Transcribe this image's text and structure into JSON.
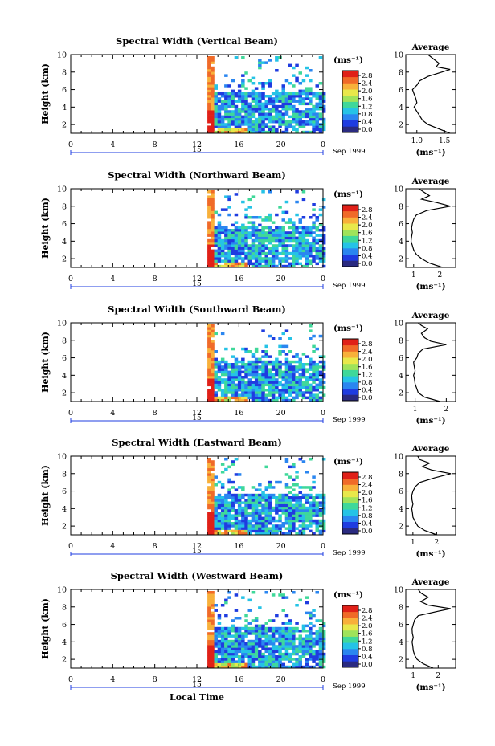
{
  "chart_data": [
    {
      "type": "heatmap",
      "title": "Spectral Width (Vertical Beam)",
      "ylabel": "Height (km)",
      "yticks": [
        "2",
        "4",
        "6",
        "8",
        "10"
      ],
      "xticks": [
        "0",
        "4",
        "8",
        "12",
        "16",
        "20",
        "0"
      ],
      "xlim": [
        0,
        24
      ],
      "ylim": [
        1,
        10
      ],
      "date_label": "15",
      "month_label": "Sep 1999",
      "data_start_hour": 13,
      "colorbar": {
        "unit": "(ms⁻¹)",
        "ticks": [
          "0.0",
          "0.4",
          "0.8",
          "1.2",
          "1.6",
          "2.0",
          "2.4",
          "2.8"
        ]
      },
      "average": {
        "title": "Average",
        "xlabel": "(ms⁻¹)",
        "xticks": [
          "1.0",
          "1.5"
        ],
        "xlim": [
          0.8,
          1.7
        ],
        "yticks": [
          "2",
          "4",
          "6",
          "8",
          "10"
        ],
        "profile": [
          [
            1,
            1.6
          ],
          [
            1.5,
            1.4
          ],
          [
            2,
            1.2
          ],
          [
            2.5,
            1.1
          ],
          [
            3,
            1.05
          ],
          [
            3.5,
            1.0
          ],
          [
            4,
            0.95
          ],
          [
            4.5,
            1.0
          ],
          [
            5,
            0.98
          ],
          [
            5.5,
            0.95
          ],
          [
            6,
            0.92
          ],
          [
            6.5,
            1.0
          ],
          [
            7,
            1.05
          ],
          [
            7.5,
            1.2
          ],
          [
            8,
            1.45
          ],
          [
            8.3,
            1.6
          ],
          [
            8.6,
            1.35
          ],
          [
            9,
            1.4
          ],
          [
            9.5,
            1.3
          ],
          [
            10,
            1.2
          ]
        ]
      }
    },
    {
      "type": "heatmap",
      "title": "Spectral Width (Northward Beam)",
      "ylabel": "Height (km)",
      "yticks": [
        "2",
        "4",
        "6",
        "8",
        "10"
      ],
      "xticks": [
        "0",
        "4",
        "8",
        "12",
        "16",
        "20",
        "0"
      ],
      "xlim": [
        0,
        24
      ],
      "ylim": [
        1,
        10
      ],
      "date_label": "15",
      "month_label": "Sep 1999",
      "data_start_hour": 13,
      "colorbar": {
        "unit": "(ms⁻¹)",
        "ticks": [
          "0.0",
          "0.4",
          "0.8",
          "1.2",
          "1.6",
          "2.0",
          "2.4",
          "2.8"
        ]
      },
      "average": {
        "title": "Average",
        "xlabel": "(ms⁻¹)",
        "xticks": [
          "1",
          "2"
        ],
        "xlim": [
          0.7,
          2.6
        ],
        "yticks": [
          "2",
          "4",
          "6",
          "8",
          "10"
        ],
        "profile": [
          [
            1,
            2.1
          ],
          [
            1.5,
            1.6
          ],
          [
            2,
            1.3
          ],
          [
            2.5,
            1.1
          ],
          [
            3,
            1.0
          ],
          [
            3.5,
            0.95
          ],
          [
            4,
            0.9
          ],
          [
            4.5,
            0.92
          ],
          [
            5,
            0.95
          ],
          [
            5.5,
            0.92
          ],
          [
            6,
            0.95
          ],
          [
            6.5,
            1.0
          ],
          [
            7,
            1.1
          ],
          [
            7.5,
            1.5
          ],
          [
            8,
            2.4
          ],
          [
            8.4,
            1.9
          ],
          [
            8.8,
            1.3
          ],
          [
            9.2,
            1.6
          ],
          [
            9.6,
            1.4
          ],
          [
            10,
            1.2
          ]
        ]
      }
    },
    {
      "type": "heatmap",
      "title": "Spectral Width (Southward Beam)",
      "ylabel": "Height (km)",
      "yticks": [
        "2",
        "4",
        "6",
        "8",
        "10"
      ],
      "xticks": [
        "0",
        "4",
        "8",
        "12",
        "16",
        "20",
        "0"
      ],
      "xlim": [
        0,
        24
      ],
      "ylim": [
        1,
        10
      ],
      "date_label": "15",
      "month_label": "Sep 1999",
      "data_start_hour": 13,
      "colorbar": {
        "unit": "(ms⁻¹)",
        "ticks": [
          "0.0",
          "0.4",
          "0.8",
          "1.2",
          "1.6",
          "2.0",
          "2.4",
          "2.8"
        ]
      },
      "average": {
        "title": "Average",
        "xlabel": "(ms⁻¹)",
        "xticks": [
          "1",
          "2"
        ],
        "xlim": [
          0.7,
          2.3
        ],
        "yticks": [
          "2",
          "4",
          "6",
          "8",
          "10"
        ],
        "profile": [
          [
            1,
            1.8
          ],
          [
            1.5,
            1.3
          ],
          [
            2,
            1.1
          ],
          [
            2.5,
            1.05
          ],
          [
            3,
            1.0
          ],
          [
            3.5,
            0.98
          ],
          [
            4,
            0.95
          ],
          [
            4.5,
            1.0
          ],
          [
            5,
            0.97
          ],
          [
            5.5,
            0.95
          ],
          [
            6,
            1.05
          ],
          [
            6.5,
            1.1
          ],
          [
            7,
            1.25
          ],
          [
            7.5,
            2.0
          ],
          [
            7.9,
            1.5
          ],
          [
            8.3,
            1.3
          ],
          [
            8.8,
            1.2
          ],
          [
            9.3,
            1.4
          ],
          [
            9.7,
            1.2
          ],
          [
            10,
            1.1
          ]
        ]
      }
    },
    {
      "type": "heatmap",
      "title": "Spectral Width (Eastward Beam)",
      "ylabel": "Height (km)",
      "yticks": [
        "2",
        "4",
        "6",
        "8",
        "10"
      ],
      "xticks": [
        "0",
        "4",
        "8",
        "12",
        "16",
        "20",
        "0"
      ],
      "xlim": [
        0,
        24
      ],
      "ylim": [
        1,
        10
      ],
      "date_label": "15",
      "month_label": "Sep 1999",
      "data_start_hour": 13,
      "colorbar": {
        "unit": "(ms⁻¹)",
        "ticks": [
          "0.0",
          "0.4",
          "0.8",
          "1.2",
          "1.6",
          "2.0",
          "2.4",
          "2.8"
        ]
      },
      "average": {
        "title": "Average",
        "xlabel": "(ms⁻¹)",
        "xticks": [
          "1",
          "2"
        ],
        "xlim": [
          0.7,
          2.8
        ],
        "yticks": [
          "2",
          "4",
          "6",
          "8",
          "10"
        ],
        "profile": [
          [
            1,
            2.0
          ],
          [
            1.5,
            1.5
          ],
          [
            2,
            1.2
          ],
          [
            2.5,
            1.1
          ],
          [
            3,
            1.0
          ],
          [
            3.5,
            0.98
          ],
          [
            4,
            0.95
          ],
          [
            4.5,
            1.0
          ],
          [
            5,
            0.96
          ],
          [
            5.5,
            0.95
          ],
          [
            6,
            1.0
          ],
          [
            6.5,
            1.1
          ],
          [
            7,
            1.3
          ],
          [
            7.5,
            1.9
          ],
          [
            8,
            2.6
          ],
          [
            8.4,
            1.8
          ],
          [
            8.8,
            1.4
          ],
          [
            9.2,
            1.7
          ],
          [
            9.6,
            1.3
          ],
          [
            10,
            1.2
          ]
        ]
      }
    },
    {
      "type": "heatmap",
      "title": "Spectral Width (Westward Beam)",
      "ylabel": "Height (km)",
      "yticks": [
        "2",
        "4",
        "6",
        "8",
        "10"
      ],
      "xticks": [
        "0",
        "4",
        "8",
        "12",
        "16",
        "20",
        "0"
      ],
      "xlim": [
        0,
        24
      ],
      "ylim": [
        1,
        10
      ],
      "date_label": "15",
      "month_label": "Sep 1999",
      "xlabel": "Local Time",
      "data_start_hour": 13,
      "colorbar": {
        "unit": "(ms⁻¹)",
        "ticks": [
          "0.0",
          "0.4",
          "0.8",
          "1.2",
          "1.6",
          "2.0",
          "2.4",
          "2.8"
        ]
      },
      "average": {
        "title": "Average",
        "xlabel": "(ms⁻¹)",
        "xticks": [
          "1",
          "2"
        ],
        "xlim": [
          0.7,
          2.7
        ],
        "yticks": [
          "2",
          "4",
          "6",
          "8",
          "10"
        ],
        "profile": [
          [
            1,
            1.8
          ],
          [
            1.5,
            1.4
          ],
          [
            2,
            1.15
          ],
          [
            2.5,
            1.05
          ],
          [
            3,
            1.0
          ],
          [
            3.5,
            0.98
          ],
          [
            4,
            0.95
          ],
          [
            4.5,
            1.0
          ],
          [
            5,
            0.96
          ],
          [
            5.5,
            0.95
          ],
          [
            6,
            1.0
          ],
          [
            6.5,
            1.05
          ],
          [
            7,
            1.2
          ],
          [
            7.5,
            2.0
          ],
          [
            7.8,
            2.5
          ],
          [
            8.2,
            1.6
          ],
          [
            8.6,
            1.3
          ],
          [
            9.1,
            1.6
          ],
          [
            9.6,
            1.3
          ],
          [
            10,
            1.2
          ]
        ]
      }
    }
  ],
  "colors": {
    "scale": [
      "#2a2a80",
      "#1f3ce0",
      "#2a86f0",
      "#25c3e6",
      "#3fd89a",
      "#9fe35a",
      "#e8e84a",
      "#f8b03a",
      "#f06a28",
      "#e02018"
    ]
  }
}
